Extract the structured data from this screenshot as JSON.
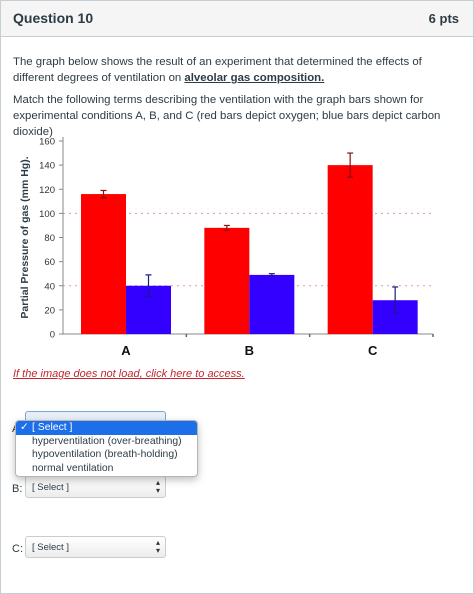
{
  "question": {
    "title": "Question 10",
    "points": "6 pts"
  },
  "body": {
    "p1_part1": "The graph below shows the result of an experiment that determined the effects of different degrees of ventilation on ",
    "p1_emph": "alveolar gas composition.",
    "p2": "Match the following terms describing the ventilation with the graph bars shown for experimental conditions A, B, and C (red bars depict oxygen; blue bars depict carbon dioxide)"
  },
  "chart_data": {
    "type": "bar",
    "categories": [
      "A",
      "B",
      "C"
    ],
    "series": [
      {
        "values": [
          116,
          88,
          140
        ],
        "error": [
          3,
          2,
          10
        ],
        "color": "#ff0000"
      },
      {
        "values": [
          40,
          49,
          28
        ],
        "error": [
          9,
          1,
          11
        ],
        "color": "#3300ff"
      }
    ],
    "ylabel": "Partial Pressure of gas (mm Hg).",
    "ylim": [
      0,
      160
    ],
    "yticks": [
      "0",
      "20",
      "40",
      "60",
      "80",
      "100",
      "120",
      "140",
      "160"
    ],
    "reference_lines": [
      100,
      40
    ]
  },
  "link_text": "If the image does not load, click here to access.",
  "selects": {
    "a_letter": "A:",
    "b_letter": "B:",
    "c_letter": "C:",
    "b_value": "[ Select ]",
    "c_value": "[ Select ]"
  },
  "dropdown": {
    "check": "✓",
    "options": [
      "[ Select ]",
      "hyperventilation (over-breathing)",
      "hypoventilation (breath-holding)",
      "normal ventilation"
    ]
  }
}
